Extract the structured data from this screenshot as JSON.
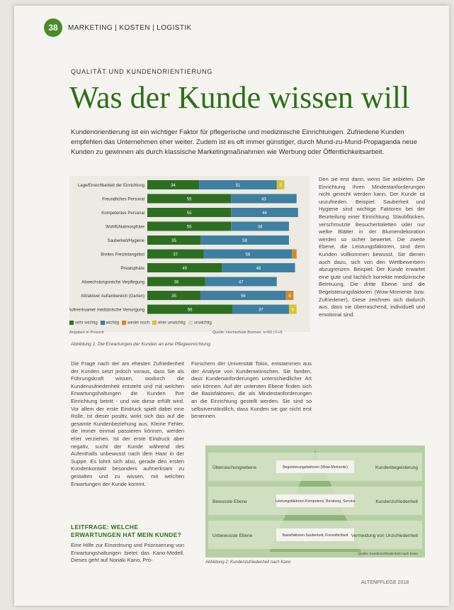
{
  "header": {
    "page_number": "38",
    "section": "MARKETING | KOSTEN | LOGISTIK"
  },
  "kicker": "QUALITÄT UND KUNDENORIENTIERUNG",
  "title": "Was der Kunde wissen will",
  "lead": "Kundenorientierung ist ein wichtiger Faktor für pflegerische und medizinische Einrichtungen. Zufriedene Kunden empfehlen das Unternehmen eher weiter. Zudem ist es oft immer günstiger, durch Mund-zu-Mund-Propaganda neue Kunden zu gewinnen als durch klassische Marketingmaßnahmen wie Werbung oder Öffentlichkeitsarbeit.",
  "chart_data": {
    "type": "bar",
    "categories": [
      "Lage/Erreichbarkeit der Einrichtung",
      "Freundliches Personal",
      "Kompetentes Personal",
      "Wohlfühlatmosphäre",
      "Sauberkeit/Hygiene",
      "Breites Freizeitangebot",
      "Privatsphäre",
      "Abwechslungsreiche Verpflegung",
      "Attraktiver Außenbereich (Garten)",
      "Aufmerksamer medizinische Versorgung"
    ],
    "series": [
      {
        "name": "sehr wichtig",
        "values": [
          34,
          55,
          55,
          55,
          35,
          37,
          49,
          38,
          35,
          56
        ]
      },
      {
        "name": "wichtig",
        "values": [
          51,
          43,
          44,
          38,
          58,
          58,
          48,
          47,
          56,
          37
        ]
      },
      {
        "name": "weder noch",
        "values": [
          0,
          0,
          0,
          0,
          0,
          3,
          0,
          0,
          5,
          0
        ]
      },
      {
        "name": "eher unwichtig",
        "values": [
          5,
          0,
          0,
          0,
          0,
          0,
          0,
          0,
          0,
          5
        ]
      },
      {
        "name": "unwichtig",
        "values": [
          0,
          0,
          0,
          0,
          0,
          0,
          0,
          0,
          0,
          0
        ]
      }
    ],
    "colors": [
      "#2e6e22",
      "#3f7fa0",
      "#d08830",
      "#d6c23a",
      "#d8d4c8"
    ],
    "legend": [
      "sehr wichtig",
      "wichtig",
      "weder noch",
      "eher unwichtig",
      "unwichtig"
    ],
    "note": "Angaben in Prozent",
    "source": "Quelle: Hochschule Bremen, n=93 | F+S",
    "xlim": [
      0,
      100
    ]
  },
  "caption": "Abbildung 1: Die Erwartungen der Kunden an eine Pflegeeinrichtung",
  "col1": "Die Frage nach der am ehesten Zufriedenheit der Kunden setzt jedoch voraus, dass Sie als Führungskraft wissen, wodurch die Kundenzufriedenheit entsteht und mit welchen Erwartungshaltungen die Kunden Ihre Einrichtung betritt - und wie diese erfüllt wird. Vor allem der erste Eindruck spielt dabei eine Rolle, ist dieser positiv, wirkt sich das auf die gesamte Kundenbeziehung aus. Kleine Fehler, die immer einmal passieren können, werden eher verziehen. Ist der erste Eindruck aber negativ, sucht der Kunde während des Aufenthalts unbewusst nach dem Haar in der Suppe. Es lohnt sich also, gerade den ersten Kundenkontakt besonders aufmerksam zu gestalten und zu wissen, mit welchen Erwartungen der Kunde kommt.",
  "col2": "Forschern der Universität Tokio, entstammen aus der Analyse von Kundenwünschen. Sie fanden, dass Kundenanforderungen unterschiedlicher Art sein können. Auf der untersten Ebene finden sich die Basisfaktoren, die als Mindestanforderungen an die Einrichtung gestellt werden. Sie sind so selbstverständlich, dass Kunden sie gar nicht erst benennen.",
  "col3": "Den sie erst dann, wenn Sie anbieten. Die Einrichtung Ihren Mindestanforderungen nicht gerecht werden kann. Der Kunde ist unzufrieden. Beispiel: Sauberkeit und Hygiene sind wichtige Faktoren bei der Beurteilung einer Einrichtung. Staubflocken, verschmutzte Besuchertoiletten oder nur welke Blätter in der Blumendekoration werden so sicher bewertet. Die zweite Ebene, die Leistungsfaktoren, sind dem Kunden vollkommen bewusst. Sie dienen auch dazu, sich von den Wettbewerbern abzugrenzen. Beispiel: Der Kunde erwartet eine gute und fachlich korrekte medizinische Betreuung. Die dritte Ebene sind die Begeisterungsfaktoren (Wow-Momente bzw. Zufriedener). Diese zeichnen sich dadurch aus, dass sie überraschend, individuell und emotional sind.",
  "subhead": "LEITFRAGE: WELCHE ERWARTUNGEN HAT MEIN KUNDE?",
  "col1b": "Eine Hilfe zur Einordnung und Priorisierung von Erwartungshaltungen bietet das Kano-Modell. Dieses geht auf Noriaki Kano, Pro-",
  "pyramid": {
    "levels": [
      {
        "left": "Überraschungsebene",
        "center": "Begeisterungsfaktoren (Wow-Momente)",
        "right": "Kundenbegeisterung"
      },
      {
        "left": "Bewusste Ebene",
        "center": "Leistungsfaktoren Kompetenz, Beratung, Service",
        "right": "Kundenzufriedenheit"
      },
      {
        "left": "Unbewusste Ebene",
        "center": "Basisfaktoren Sauberkeit, Freundlichkeit",
        "right": "Vermeidung von Unzufriedenheit"
      }
    ],
    "source": "Quelle: Kundenzufriedenheit nach Kano",
    "caption": "Abbildung 2: Kundenzufriedenheit nach Kano"
  },
  "footer": "ALTENPFLEGE 2018"
}
